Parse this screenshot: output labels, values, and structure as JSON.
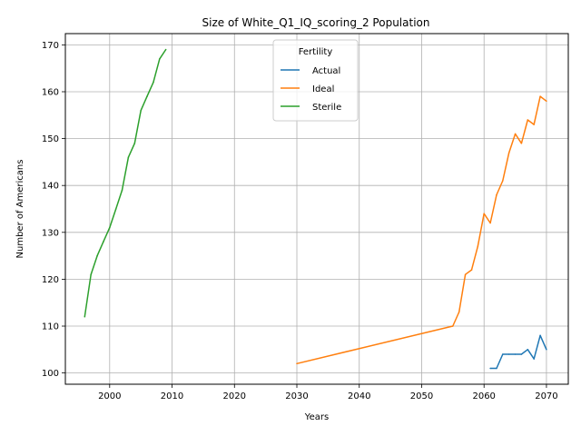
{
  "chart_data": {
    "type": "line",
    "title": "Size of White_Q1_IQ_scoring_2 Population",
    "xlabel": "Years",
    "ylabel": "Number of Americans",
    "xlim": [
      1992.9,
      2073.5
    ],
    "ylim": [
      97.6,
      172.4
    ],
    "xticks": [
      2000,
      2010,
      2020,
      2030,
      2040,
      2050,
      2060,
      2070
    ],
    "yticks": [
      100,
      110,
      120,
      130,
      140,
      150,
      160,
      170
    ],
    "grid": true,
    "legend": {
      "title": "Fertility",
      "placement": "top-center"
    },
    "series": [
      {
        "name": "Actual",
        "color": "#1f77b4",
        "x": [
          2061,
          2062,
          2063,
          2064,
          2065,
          2066,
          2067,
          2068,
          2069,
          2070
        ],
        "y": [
          101,
          101,
          104,
          104,
          104,
          104,
          105,
          103,
          108,
          105
        ]
      },
      {
        "name": "Ideal",
        "color": "#ff7f0e",
        "x": [
          2030,
          2055,
          2056,
          2057,
          2058,
          2059,
          2060,
          2061,
          2062,
          2063,
          2064,
          2065,
          2066,
          2067,
          2068,
          2069,
          2070
        ],
        "y": [
          102,
          110,
          113,
          121,
          122,
          127,
          134,
          132,
          138,
          141,
          147,
          151,
          149,
          154,
          153,
          159,
          158
        ]
      },
      {
        "name": "Sterile",
        "color": "#2ca02c",
        "x": [
          1996,
          1997,
          1998,
          1999,
          2000,
          2001,
          2002,
          2003,
          2004,
          2005,
          2006,
          2007,
          2008,
          2009
        ],
        "y": [
          112,
          121,
          125,
          128,
          131,
          135,
          139,
          146,
          149,
          156,
          159,
          162,
          167,
          169
        ]
      }
    ]
  }
}
